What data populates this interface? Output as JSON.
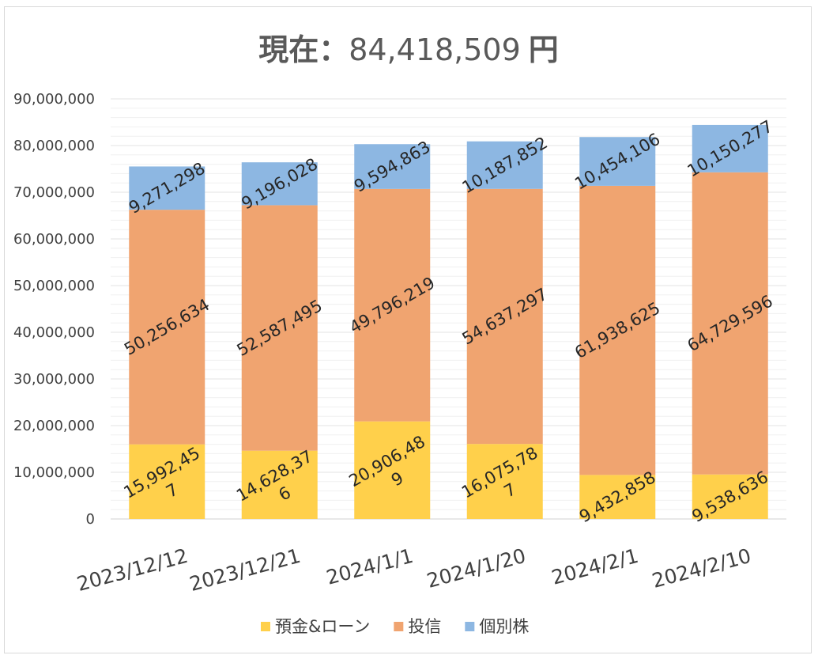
{
  "title": {
    "label": "現在：",
    "value": "84,418,509",
    "unit": "円"
  },
  "chart_data": {
    "type": "bar",
    "stacked": true,
    "categories": [
      "2023/12/12",
      "2023/12/21",
      "2024/1/1",
      "2024/1/20",
      "2024/2/1",
      "2024/2/10"
    ],
    "series": [
      {
        "name": "預金&ローン",
        "color": "#FFD04B",
        "values": [
          15992457,
          14628376,
          20906489,
          16075787,
          9432858,
          9538636
        ],
        "labels": [
          [
            "15,992,45",
            "7"
          ],
          [
            "14,628,37",
            "6"
          ],
          [
            "20,906,48",
            "9"
          ],
          [
            "16,075,78",
            "7"
          ],
          [
            "9,432,858"
          ],
          [
            "9,538,636"
          ]
        ]
      },
      {
        "name": "投信",
        "color": "#F0A470",
        "values": [
          50256634,
          52587495,
          49796219,
          54637297,
          61938625,
          64729596
        ],
        "labels": [
          [
            "50,256,634"
          ],
          [
            "52,587,495"
          ],
          [
            "49,796,219"
          ],
          [
            "54,637,297"
          ],
          [
            "61,938,625"
          ],
          [
            "64,729,596"
          ]
        ]
      },
      {
        "name": "個別株",
        "color": "#8DB7E2",
        "values": [
          9271298,
          9196028,
          9594863,
          10187852,
          10454106,
          10150277
        ],
        "labels": [
          [
            "9,271,298"
          ],
          [
            "9,196,028"
          ],
          [
            "9,594,863"
          ],
          [
            "10,187,852"
          ],
          [
            "10,454,106"
          ],
          [
            "10,150,277"
          ]
        ]
      }
    ],
    "ylim": [
      0,
      90000000
    ],
    "y_ticks": [
      "0",
      "10,000,000",
      "20,000,000",
      "30,000,000",
      "40,000,000",
      "50,000,000",
      "60,000,000",
      "70,000,000",
      "80,000,000",
      "90,000,000"
    ],
    "grid": true,
    "legend_position": "bottom",
    "xlabel": "",
    "ylabel": ""
  }
}
